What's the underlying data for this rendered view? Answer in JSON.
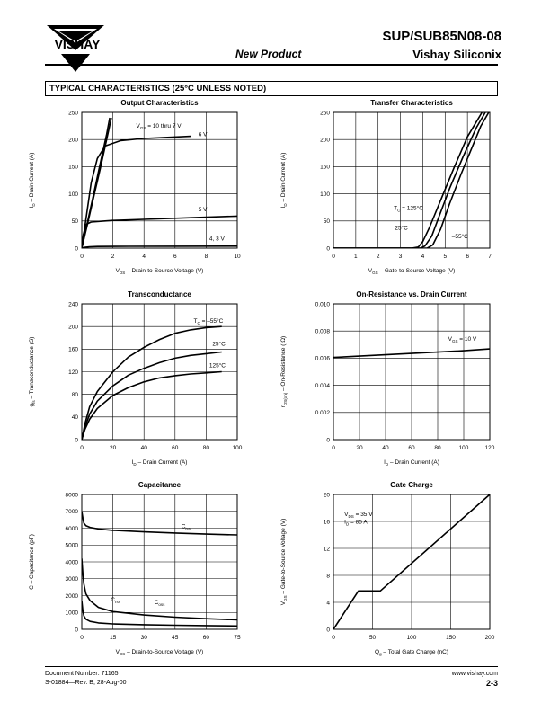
{
  "header": {
    "part_number": "SUP/SUB85N08-08",
    "company": "Vishay Siliconix",
    "new_product": "New Product",
    "logo_text": "VISHAY"
  },
  "section": {
    "title": "TYPICAL CHARACTERISTICS (25°C UNLESS NOTED)"
  },
  "footer": {
    "doc_number": "Document Number:  71165",
    "revision": "S-01884—Rev. B, 28-Aug-00",
    "website": "www.vishay.com",
    "page": "2-3"
  },
  "chart_data": [
    {
      "id": "output",
      "type": "line",
      "title": "Output Characteristics",
      "xlabel": {
        "pre": "V",
        "sub": "DS",
        "post": "  –  Drain-to-Source Voltage (V)"
      },
      "ylabel": {
        "pre": "I",
        "sub": "D",
        "post": "  –  Drain Current (A)"
      },
      "xlim": [
        0,
        10
      ],
      "ylim": [
        0,
        250
      ],
      "xticks": [
        0,
        2,
        4,
        6,
        8,
        10
      ],
      "yticks": [
        0,
        50,
        100,
        150,
        200,
        250
      ],
      "xtick_labels": [
        "0",
        "2",
        "4",
        "6",
        "8",
        "10"
      ],
      "ytick_labels": [
        "0",
        "50",
        "100",
        "150",
        "200",
        "250"
      ],
      "series": [
        {
          "x": [
            0,
            0.4,
            0.8,
            1.2,
            1.6,
            1.9
          ],
          "y": [
            0,
            48,
            98,
            148,
            200,
            240
          ]
        },
        {
          "x": [
            0,
            0.4,
            0.8,
            1.2,
            1.6,
            1.8
          ],
          "y": [
            0,
            52,
            104,
            158,
            210,
            240
          ]
        },
        {
          "x": [
            0,
            0.3,
            0.6,
            1.0,
            1.5,
            2.5,
            4,
            5.5,
            7
          ],
          "y": [
            0,
            60,
            120,
            165,
            188,
            198,
            202,
            204,
            206
          ]
        },
        {
          "x": [
            0,
            0.1,
            0.3,
            0.6,
            1.0,
            2,
            4,
            7,
            10
          ],
          "y": [
            0,
            25,
            44,
            48,
            49,
            51,
            53,
            56,
            59
          ]
        },
        {
          "x": [
            0,
            0.2,
            0.5,
            1,
            3,
            6,
            10
          ],
          "y": [
            0,
            1.5,
            2.5,
            3,
            3.3,
            3.5,
            3.7
          ]
        }
      ],
      "annotations": [
        {
          "x": 3.5,
          "y": 222,
          "pre": "V",
          "sub": "GS",
          "post": " = 10 thru 7 V",
          "anchor": "start"
        },
        {
          "x": 7.5,
          "y": 206,
          "pre": "6 V",
          "anchor": "start"
        },
        {
          "x": 7.5,
          "y": 68,
          "pre": "5 V",
          "anchor": "start"
        },
        {
          "x": 8.2,
          "y": 14,
          "pre": "4, 3 V",
          "anchor": "start"
        }
      ]
    },
    {
      "id": "transfer",
      "type": "line",
      "title": "Transfer Characteristics",
      "xlabel": {
        "pre": "V",
        "sub": "GS",
        "post": "  –  Gate-to-Source Voltage (V)"
      },
      "ylabel": {
        "pre": "I",
        "sub": "D",
        "post": "  –  Drain Current (A)"
      },
      "xlim": [
        0,
        7
      ],
      "ylim": [
        0,
        250
      ],
      "xticks": [
        0,
        1,
        2,
        3,
        4,
        5,
        6,
        7
      ],
      "yticks": [
        0,
        50,
        100,
        150,
        200,
        250
      ],
      "xtick_labels": [
        "0",
        "1",
        "2",
        "3",
        "4",
        "5",
        "6",
        "7"
      ],
      "ytick_labels": [
        "0",
        "50",
        "100",
        "150",
        "200",
        "250"
      ],
      "series": [
        {
          "x": [
            0,
            3.5,
            3.8,
            4.0,
            4.3,
            4.8,
            5.4,
            6.0,
            6.65
          ],
          "y": [
            0,
            0,
            2,
            12,
            38,
            88,
            148,
            205,
            250
          ]
        },
        {
          "x": [
            0,
            3.9,
            4.1,
            4.4,
            4.7,
            5.2,
            5.8,
            6.4,
            6.8
          ],
          "y": [
            0,
            0,
            4,
            22,
            55,
            110,
            168,
            222,
            250
          ]
        },
        {
          "x": [
            0,
            4.2,
            4.45,
            4.8,
            5.2,
            5.7,
            6.2,
            6.6,
            6.95
          ],
          "y": [
            0,
            0,
            6,
            35,
            82,
            135,
            185,
            225,
            250
          ]
        }
      ],
      "annotations": [
        {
          "x": 2.7,
          "y": 70,
          "pre": "T",
          "sub": "C",
          "post": " = 125°C",
          "anchor": "start"
        },
        {
          "x": 2.75,
          "y": 34,
          "pre": "25°C",
          "anchor": "start"
        },
        {
          "x": 5.3,
          "y": 18,
          "pre": "–55°C",
          "anchor": "start"
        }
      ]
    },
    {
      "id": "transconductance",
      "type": "line",
      "title": "Transconductance",
      "xlabel": {
        "pre": "I",
        "sub": "D",
        "post": "  –  Drain Current (A)"
      },
      "ylabel": {
        "pre": "g",
        "sub": "fs",
        "post": "  –  Transconductance (S)"
      },
      "xlim": [
        0,
        100
      ],
      "ylim": [
        0,
        240
      ],
      "xticks": [
        0,
        20,
        40,
        60,
        80,
        100
      ],
      "yticks": [
        0,
        40,
        80,
        120,
        160,
        200,
        240
      ],
      "xtick_labels": [
        "0",
        "20",
        "40",
        "60",
        "80",
        "100"
      ],
      "ytick_labels": [
        "0",
        "40",
        "80",
        "120",
        "160",
        "200",
        "240"
      ],
      "series": [
        {
          "x": [
            0,
            2,
            5,
            10,
            20,
            30,
            40,
            50,
            60,
            70,
            80,
            90
          ],
          "y": [
            0,
            28,
            58,
            85,
            120,
            146,
            163,
            177,
            188,
            194,
            198,
            200
          ]
        },
        {
          "x": [
            0,
            2,
            5,
            10,
            20,
            30,
            40,
            50,
            60,
            70,
            80,
            90
          ],
          "y": [
            0,
            22,
            45,
            68,
            95,
            114,
            126,
            136,
            144,
            149,
            152,
            155
          ]
        },
        {
          "x": [
            0,
            2,
            5,
            10,
            20,
            30,
            40,
            50,
            60,
            70,
            80,
            90
          ],
          "y": [
            0,
            18,
            36,
            55,
            78,
            92,
            102,
            109,
            113,
            116,
            118,
            120
          ]
        }
      ],
      "annotations": [
        {
          "x": 72,
          "y": 207,
          "pre": "T",
          "sub": "C",
          "post": " = –55°C",
          "anchor": "start"
        },
        {
          "x": 84,
          "y": 166,
          "pre": "25°C",
          "anchor": "start"
        },
        {
          "x": 82,
          "y": 128,
          "pre": "125°C",
          "anchor": "start"
        }
      ]
    },
    {
      "id": "on-resistance",
      "type": "line",
      "title": "On-Resistance vs. Drain Current",
      "xlabel": {
        "pre": "I",
        "sub": "D",
        "post": "  –  Drain Current (A)"
      },
      "ylabel": {
        "pre": "r",
        "sub": "DS(on)",
        "post": "  –  On-Resistance (  Ω)"
      },
      "xlim": [
        0,
        120
      ],
      "ylim": [
        0,
        0.01
      ],
      "xticks": [
        0,
        20,
        40,
        60,
        80,
        100,
        120
      ],
      "yticks": [
        0,
        0.002,
        0.004,
        0.006,
        0.008,
        0.01
      ],
      "xtick_labels": [
        "0",
        "20",
        "40",
        "60",
        "80",
        "100",
        "120"
      ],
      "ytick_labels": [
        "0",
        "0.002",
        "0.004",
        "0.006",
        "0.008",
        "0.010"
      ],
      "series": [
        {
          "x": [
            0,
            20,
            40,
            60,
            80,
            100,
            120
          ],
          "y": [
            0.00605,
            0.00615,
            0.00625,
            0.00635,
            0.00645,
            0.00655,
            0.00668
          ]
        }
      ],
      "annotations": [
        {
          "x": 88,
          "y": 0.0073,
          "pre": "V",
          "sub": "GS",
          "post": " = 10 V",
          "anchor": "start"
        }
      ]
    },
    {
      "id": "capacitance",
      "type": "line",
      "title": "Capacitance",
      "xlabel": {
        "pre": "V",
        "sub": "DS",
        "post": "  –  Drain-to-Source Voltage (V)"
      },
      "ylabel": {
        "pre": "C  –  Capacitance (pF)"
      },
      "xlim": [
        0,
        75
      ],
      "ylim": [
        0,
        8000
      ],
      "xticks": [
        0,
        15,
        30,
        45,
        60,
        75
      ],
      "yticks": [
        0,
        1000,
        2000,
        3000,
        4000,
        5000,
        6000,
        7000,
        8000
      ],
      "xtick_labels": [
        "0",
        "15",
        "30",
        "45",
        "60",
        "75"
      ],
      "ytick_labels": [
        "0",
        "1000",
        "2000",
        "3000",
        "4000",
        "5000",
        "6000",
        "7000",
        "8000"
      ],
      "series": [
        {
          "name": "Ciss",
          "x": [
            0,
            0.5,
            1,
            2,
            4,
            8,
            15,
            30,
            45,
            60,
            75
          ],
          "y": [
            7000,
            6600,
            6300,
            6150,
            6050,
            5950,
            5870,
            5780,
            5710,
            5650,
            5600
          ]
        },
        {
          "name": "Coss",
          "x": [
            0,
            0.5,
            1,
            2,
            4,
            8,
            15,
            30,
            45,
            60,
            75
          ],
          "y": [
            4200,
            3300,
            2700,
            2100,
            1700,
            1300,
            1050,
            850,
            720,
            630,
            560
          ]
        },
        {
          "name": "Crss",
          "x": [
            0,
            0.5,
            1,
            2,
            4,
            8,
            15,
            30,
            45,
            60,
            75
          ],
          "y": [
            1700,
            1100,
            800,
            600,
            470,
            380,
            320,
            270,
            240,
            220,
            200
          ]
        }
      ],
      "annotations": [
        {
          "x": 48,
          "y": 6000,
          "pre": "C",
          "sub": "iss",
          "anchor": "start"
        },
        {
          "x": 35,
          "y": 1500,
          "pre": "C",
          "sub": "oss",
          "anchor": "start"
        },
        {
          "x": 14,
          "y": 1650,
          "pre": "C",
          "sub": "rss",
          "anchor": "start"
        }
      ]
    },
    {
      "id": "gate-charge",
      "type": "line",
      "title": "Gate Charge",
      "xlabel": {
        "pre": "Q",
        "sub": "g",
        "post": "  –  Total Gate Charge (nC)"
      },
      "ylabel": {
        "pre": "V",
        "sub": "GS",
        "post": "  –  Gate-to-Source Voltage (V)"
      },
      "xlim": [
        0,
        200
      ],
      "ylim": [
        0,
        20
      ],
      "xticks": [
        0,
        50,
        100,
        150,
        200
      ],
      "yticks": [
        0,
        4,
        8,
        12,
        16,
        20
      ],
      "xtick_labels": [
        "0",
        "50",
        "100",
        "150",
        "200"
      ],
      "ytick_labels": [
        "0",
        "4",
        "8",
        "12",
        "16",
        "20"
      ],
      "series": [
        {
          "x": [
            0,
            32,
            60,
            200
          ],
          "y": [
            0,
            5.7,
            5.7,
            20
          ]
        }
      ],
      "annotations": [
        {
          "x": 14,
          "y": 16.8,
          "pre": "V",
          "sub": "DS",
          "post": " = 35 V",
          "anchor": "start"
        },
        {
          "x": 14,
          "y": 15.7,
          "pre": "I",
          "sub": "D",
          "post": " = 85 A",
          "anchor": "start"
        }
      ]
    }
  ]
}
